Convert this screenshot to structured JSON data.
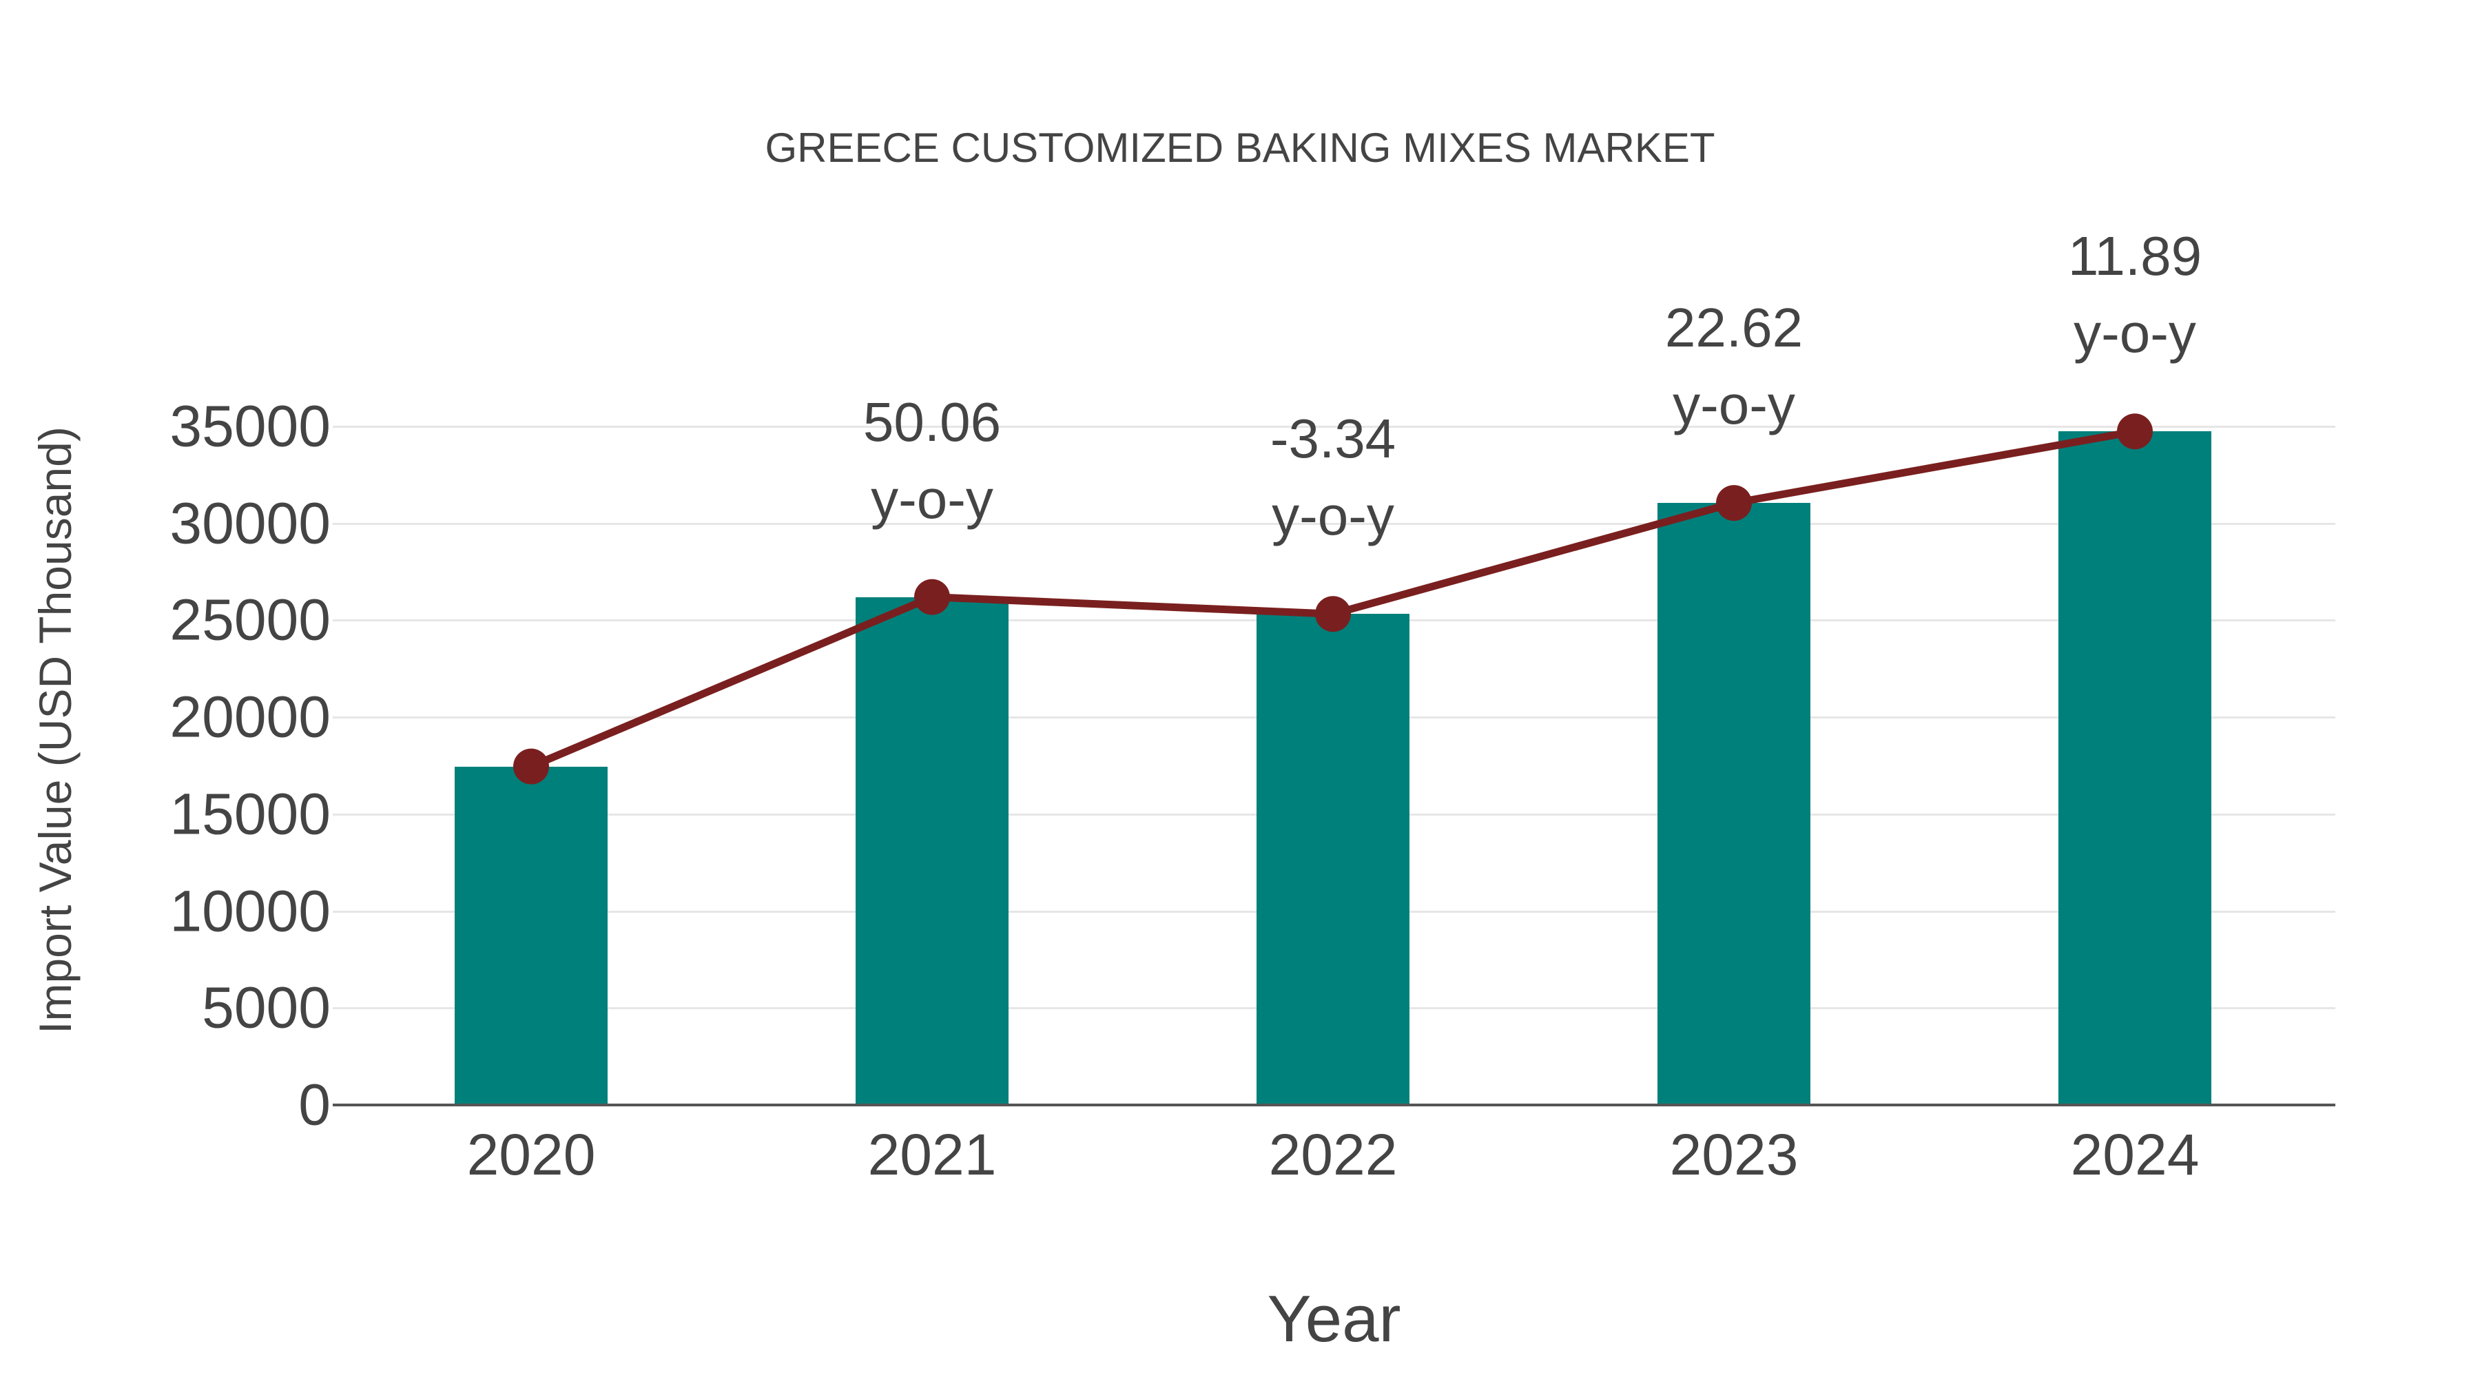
{
  "title": "GREECE CUSTOMIZED BAKING MIXES MARKET",
  "y_axis": {
    "label": "Import Value (USD Thousand)",
    "ticks": [
      "0",
      "5000",
      "10000",
      "15000",
      "20000",
      "25000",
      "30000",
      "35000"
    ]
  },
  "x_axis": {
    "label": "Year",
    "ticks": [
      "2020",
      "2021",
      "2022",
      "2023",
      "2024"
    ]
  },
  "annotations": [
    {
      "year": "2021",
      "value": "50.06",
      "suffix": "y-o-y"
    },
    {
      "year": "2022",
      "value": "-3.34",
      "suffix": "y-o-y"
    },
    {
      "year": "2023",
      "value": "22.62",
      "suffix": "y-o-y"
    },
    {
      "year": "2024",
      "value": "11.89",
      "suffix": "y-o-y"
    }
  ],
  "colors": {
    "bar": "#00807b",
    "line": "#7a1f1f",
    "grid": "#e6e6e6",
    "text": "#444444"
  },
  "chart_data": {
    "type": "bar",
    "title": "GREECE CUSTOMIZED BAKING MIXES MARKET",
    "xlabel": "Year",
    "ylabel": "Import Value (USD Thousand)",
    "categories": [
      "2020",
      "2021",
      "2022",
      "2023",
      "2024"
    ],
    "series": [
      {
        "name": "Import Value",
        "type": "bar",
        "values": [
          17460,
          26200,
          25325,
          31050,
          34742
        ]
      },
      {
        "name": "Import Value trend",
        "type": "line",
        "values": [
          17460,
          26200,
          25325,
          31050,
          34742
        ]
      }
    ],
    "yoy_growth_percent": [
      null,
      50.06,
      -3.34,
      22.62,
      11.89
    ],
    "ylim": [
      0,
      35000
    ],
    "yticks": [
      0,
      5000,
      10000,
      15000,
      20000,
      25000,
      30000,
      35000
    ],
    "grid": true,
    "legend": "none"
  }
}
